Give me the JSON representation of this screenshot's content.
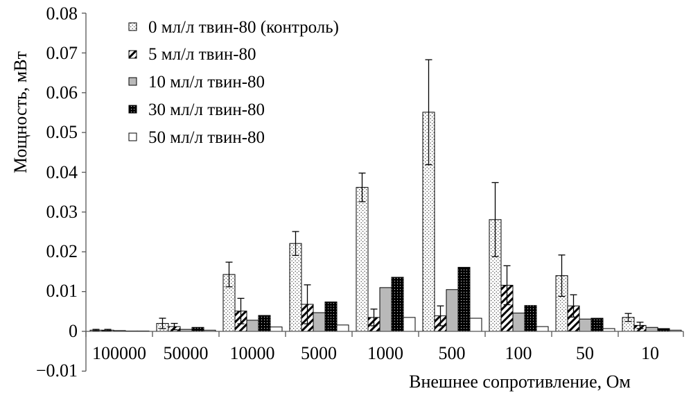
{
  "chart_data": {
    "type": "bar",
    "title": "",
    "xlabel": "Внешнее сопротивление, Ом",
    "ylabel": "Мощность, мВт",
    "ylim": [
      -0.01,
      0.08
    ],
    "y_ticks": [
      "0.08",
      "0.07",
      "0.06",
      "0.05",
      "0.04",
      "0.03",
      "0.02",
      "0.01",
      "0",
      "−0.01"
    ],
    "y_tick_values": [
      0.08,
      0.07,
      0.06,
      0.05,
      0.04,
      0.03,
      0.02,
      0.01,
      0,
      -0.01
    ],
    "categories": [
      "100000",
      "50000",
      "10000",
      "5000",
      "1000",
      "500",
      "100",
      "50",
      "10"
    ],
    "legend_position": "top-left",
    "series": [
      {
        "name": "0 мл/л твин-80 (контроль)",
        "pattern": "dots",
        "values": [
          0.0003,
          0.002,
          0.0143,
          0.0221,
          0.0362,
          0.0551,
          0.0281,
          0.014,
          0.0035
        ],
        "errors": [
          0.0002,
          0.0013,
          0.0031,
          0.003,
          0.0036,
          0.0132,
          0.0093,
          0.0052,
          0.001
        ]
      },
      {
        "name": "5 мл/л твин-80",
        "pattern": "hatch",
        "values": [
          0.0003,
          0.0012,
          0.0051,
          0.0068,
          0.0035,
          0.0039,
          0.0116,
          0.0064,
          0.0015
        ],
        "errors": [
          0.0002,
          0.0008,
          0.0032,
          0.0049,
          0.0021,
          0.0025,
          0.0049,
          0.0028,
          0.0008
        ]
      },
      {
        "name": "10 мл/л твин-80",
        "pattern": "gray",
        "values": [
          0.0002,
          0.0005,
          0.0028,
          0.0047,
          0.011,
          0.0105,
          0.0046,
          0.0031,
          0.001
        ]
      },
      {
        "name": "30 мл/л твин-80",
        "pattern": "dark",
        "values": [
          0.0001,
          0.001,
          0.004,
          0.0074,
          0.0136,
          0.0161,
          0.0065,
          0.0033,
          0.0007
        ]
      },
      {
        "name": "50 мл/л твин-80",
        "pattern": "white",
        "values": [
          0.0001,
          0.0003,
          0.0011,
          0.0016,
          0.0035,
          0.0033,
          0.0012,
          0.0007,
          0.0003
        ]
      }
    ]
  }
}
